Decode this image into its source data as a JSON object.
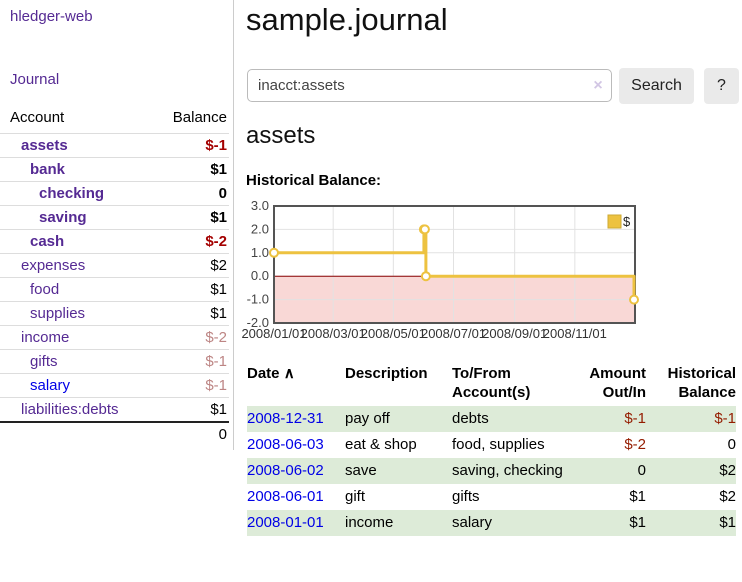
{
  "app": {
    "brand": "hledger-web",
    "nav_journal": "Journal"
  },
  "colors": {
    "link_purple": "#552a93",
    "link_blue": "#0000e6",
    "negative_strong": "#a40000",
    "negative_muted": "#bd8584",
    "negative_table": "#941c00",
    "row_green": "#ddebd8",
    "series_yellow": "#edc240",
    "negative_region_pink": "#f9d8d6",
    "zero_line_red": "#8b0000"
  },
  "sidebar": {
    "header": {
      "account": "Account",
      "balance": "Balance"
    },
    "accounts": [
      {
        "name": "assets",
        "depth": 1,
        "balance": "$-1",
        "bold": true,
        "amount_style": "neg-strong",
        "link_style": "purple"
      },
      {
        "name": "bank",
        "depth": 2,
        "balance": "$1",
        "bold": true,
        "amount_style": "normal",
        "link_style": "purple"
      },
      {
        "name": "checking",
        "depth": 3,
        "balance": "0",
        "bold": true,
        "amount_style": "normal",
        "link_style": "purple"
      },
      {
        "name": "saving",
        "depth": 3,
        "balance": "$1",
        "bold": true,
        "amount_style": "normal",
        "link_style": "purple"
      },
      {
        "name": "cash",
        "depth": 2,
        "balance": "$-2",
        "bold": true,
        "amount_style": "neg-strong",
        "link_style": "purple"
      },
      {
        "name": "expenses",
        "depth": 1,
        "balance": "$2",
        "bold": false,
        "amount_style": "normal",
        "link_style": "purple"
      },
      {
        "name": "food",
        "depth": 2,
        "balance": "$1",
        "bold": false,
        "amount_style": "normal",
        "link_style": "purple"
      },
      {
        "name": "supplies",
        "depth": 2,
        "balance": "$1",
        "bold": false,
        "amount_style": "normal",
        "link_style": "purple"
      },
      {
        "name": "income",
        "depth": 1,
        "balance": "$-2",
        "bold": false,
        "amount_style": "neg-muted",
        "link_style": "purple"
      },
      {
        "name": "gifts",
        "depth": 2,
        "balance": "$-1",
        "bold": false,
        "amount_style": "neg-muted",
        "link_style": "purple"
      },
      {
        "name": "salary",
        "depth": 2,
        "balance": "$-1",
        "bold": false,
        "amount_style": "neg-muted",
        "link_style": "blue"
      },
      {
        "name": "liabilities:debts",
        "depth": 1,
        "balance": "$1",
        "bold": false,
        "amount_style": "normal",
        "link_style": "purple"
      }
    ],
    "total": "0"
  },
  "header": {
    "title": "sample.journal"
  },
  "search": {
    "value": "inacct:assets",
    "clear_icon": "×",
    "button_label": "Search",
    "help_label": "?"
  },
  "main": {
    "account_title": "assets",
    "chart_label": "Historical Balance:"
  },
  "chart_data": {
    "type": "line",
    "style": "step-after",
    "title": "Historical Balance:",
    "legend": "$",
    "legend_position": "top-right",
    "series": [
      {
        "name": "$",
        "color": "#edc240",
        "points": [
          [
            "2008-01-01",
            1
          ],
          [
            "2008-06-01",
            2
          ],
          [
            "2008-06-02",
            2
          ],
          [
            "2008-06-03",
            0
          ],
          [
            "2008-12-31",
            -1
          ]
        ]
      }
    ],
    "x_start": "2008-01-01",
    "x_end": "2009-01-01",
    "x_ticks": [
      "2008/01/01",
      "2008/03/01",
      "2008/05/01",
      "2008/07/01",
      "2008/09/01",
      "2008/11/01"
    ],
    "y_ticks": [
      3.0,
      2.0,
      1.0,
      0.0,
      -1.0,
      -2.0
    ],
    "ylim": [
      -2,
      3
    ],
    "grid": true,
    "negative_region_fill": "#f9d8d6",
    "zero_line_color": "#8b0000",
    "border_color": "#545454",
    "gridline_color": "#e2e2e2"
  },
  "register": {
    "columns": [
      "Date",
      "Description",
      "To/From Account(s)",
      "Amount Out/In",
      "Historical Balance"
    ],
    "sort_indicator": "∧",
    "rows": [
      {
        "date": "2008-12-31",
        "description": "pay off",
        "accounts": "debts",
        "amount": "$-1",
        "amount_neg": true,
        "balance": "$-1",
        "balance_neg": true,
        "shaded": true
      },
      {
        "date": "2008-06-03",
        "description": "eat & shop",
        "accounts": "food, supplies",
        "amount": "$-2",
        "amount_neg": true,
        "balance": "0",
        "balance_neg": false,
        "shaded": false
      },
      {
        "date": "2008-06-02",
        "description": "save",
        "accounts": "saving, checking",
        "amount": "0",
        "amount_neg": false,
        "balance": "$2",
        "balance_neg": false,
        "shaded": true
      },
      {
        "date": "2008-06-01",
        "description": "gift",
        "accounts": "gifts",
        "amount": "$1",
        "amount_neg": false,
        "balance": "$2",
        "balance_neg": false,
        "shaded": false
      },
      {
        "date": "2008-01-01",
        "description": "income",
        "accounts": "salary",
        "amount": "$1",
        "amount_neg": false,
        "balance": "$1",
        "balance_neg": false,
        "shaded": true
      }
    ]
  }
}
